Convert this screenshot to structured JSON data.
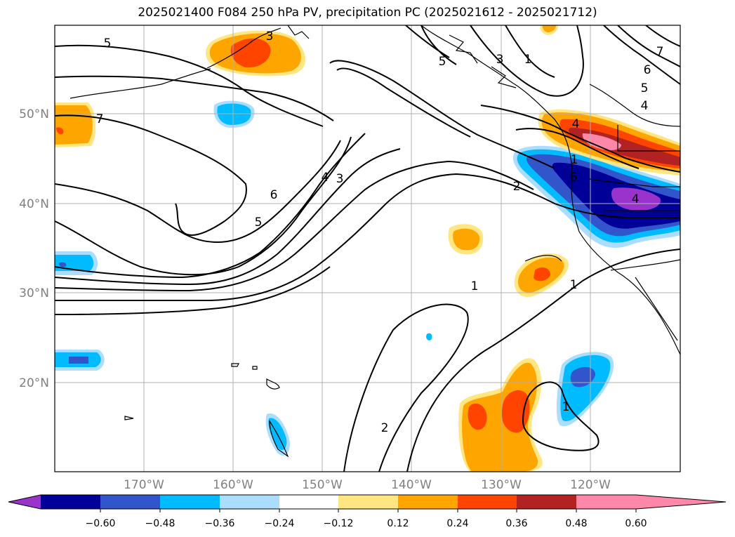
{
  "title": "2025021400 F084 250 hPa PV, precipitation PC (2025021612 - 2025021712)",
  "map": {
    "lat_labels": [
      "50°N",
      "40°N",
      "30°N",
      "20°N"
    ],
    "lon_labels": [
      "170°W",
      "160°W",
      "150°W",
      "140°W",
      "130°W",
      "120°W"
    ],
    "contour_labels": [
      "5",
      "7",
      "3",
      "6",
      "4",
      "3",
      "5",
      "2",
      "1",
      "1",
      "2",
      "1",
      "6",
      "4",
      "1",
      "5",
      "3",
      "4",
      "6",
      "5",
      "7",
      "4",
      "1"
    ]
  },
  "colorbar": {
    "ticks": [
      "−0.60",
      "−0.48",
      "−0.36",
      "−0.24",
      "−0.12",
      "0.12",
      "0.24",
      "0.36",
      "0.48",
      "0.60"
    ],
    "colors": [
      "#9933cc",
      "#000099",
      "#3355cc",
      "#00bbff",
      "#aaddff",
      "#ffffff",
      "#ffe680",
      "#ffa500",
      "#ff4400",
      "#b22222",
      "#ff88aa"
    ]
  }
}
